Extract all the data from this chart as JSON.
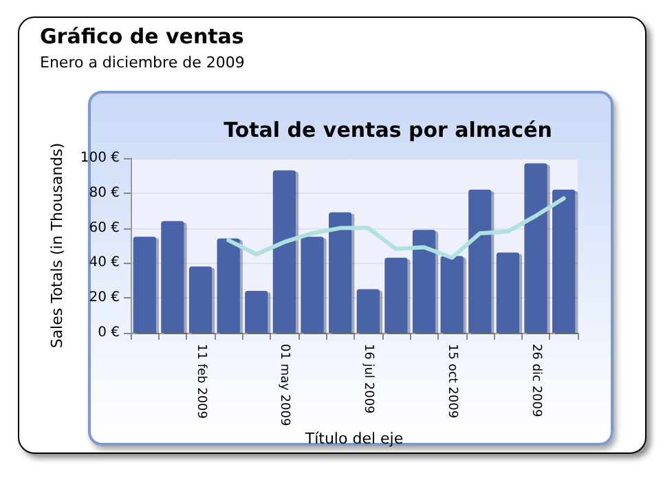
{
  "chart_data": {
    "type": "bar",
    "title": "Gráfico de ventas",
    "subtitle": "Enero a diciembre de 2009",
    "annotations": [
      "Total de ventas por almacén"
    ],
    "xlabel": "Título del eje",
    "ylabel": "Sales Totals (in Thousands)",
    "categories": [
      null,
      null,
      "11 feb 2009",
      null,
      null,
      "01 may 2009",
      null,
      null,
      "16 jul 2009",
      null,
      null,
      "15 oct 2009",
      null,
      null,
      "26 dic 2009",
      null
    ],
    "series": [
      {
        "color": "#4a64a8",
        "values": [
          55,
          64,
          38,
          54,
          24,
          93,
          55,
          69,
          25,
          43,
          59,
          44,
          82,
          46,
          97,
          82
        ]
      },
      {
        "type": "line",
        "color": "#b0e0e0",
        "marker": "none",
        "line_style": "solid",
        "values": [
          null,
          null,
          null,
          53,
          45,
          52,
          57,
          60,
          60,
          48,
          49,
          43,
          57,
          58,
          67,
          77
        ]
      }
    ],
    "ylim": [
      0,
      100
    ],
    "yticks": [
      {
        "value": 0,
        "label": "0 €"
      },
      {
        "value": 20,
        "label": "20 €"
      },
      {
        "value": 40,
        "label": "40 €"
      },
      {
        "value": 60,
        "label": "60 €"
      },
      {
        "value": 80,
        "label": "80 €"
      },
      {
        "value": 100,
        "label": "100 €"
      }
    ],
    "grid": "y"
  }
}
